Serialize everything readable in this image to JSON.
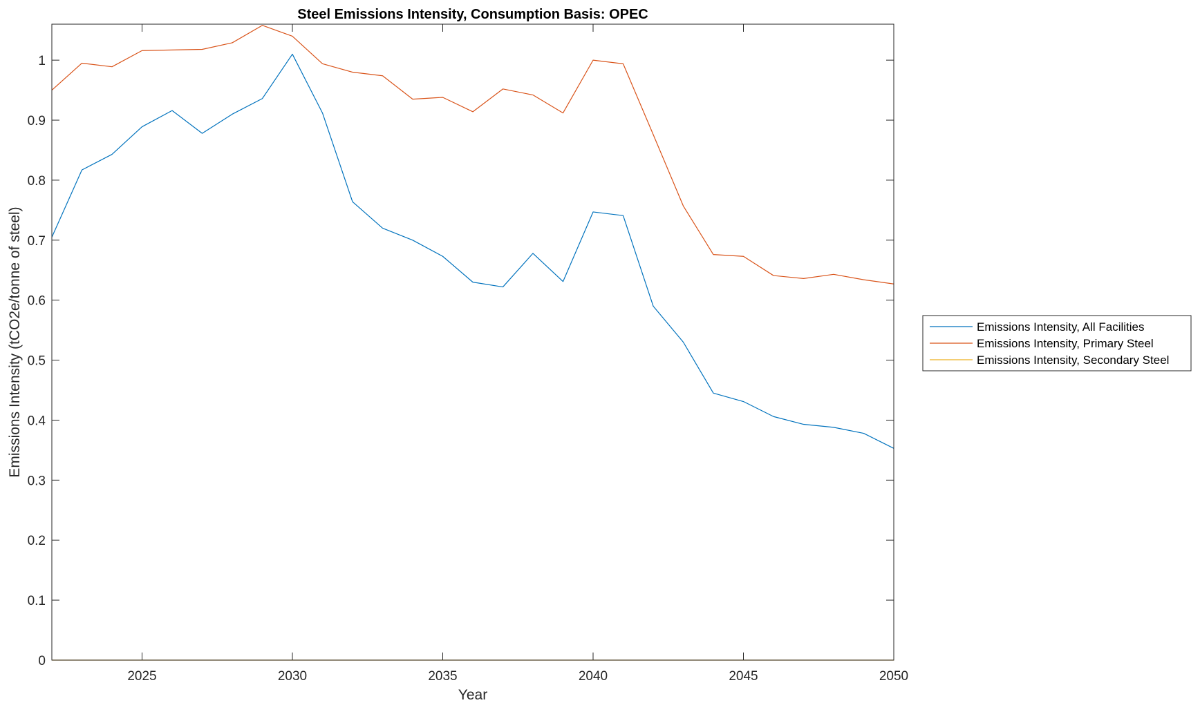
{
  "chart_data": {
    "type": "line",
    "title": "Steel Emissions Intensity, Consumption Basis: OPEC",
    "xlabel": "Year",
    "ylabel": "Emissions Intensity (tCO2e/tonne of steel)",
    "xlim": [
      2022,
      2050
    ],
    "ylim": [
      0,
      1.06
    ],
    "xticks": [
      2025,
      2030,
      2035,
      2040,
      2045,
      2050
    ],
    "yticks": [
      0,
      0.1,
      0.2,
      0.3,
      0.4,
      0.5,
      0.6,
      0.7,
      0.8,
      0.9,
      1
    ],
    "ytick_labels": [
      "0",
      "0.1",
      "0.2",
      "0.3",
      "0.4",
      "0.5",
      "0.6",
      "0.7",
      "0.8",
      "0.9",
      "1"
    ],
    "grid": false,
    "legend_position": "outside-right",
    "x": [
      2022,
      2023,
      2024,
      2025,
      2026,
      2027,
      2028,
      2029,
      2030,
      2031,
      2032,
      2033,
      2034,
      2035,
      2036,
      2037,
      2038,
      2039,
      2040,
      2041,
      2042,
      2043,
      2044,
      2045,
      2046,
      2047,
      2048,
      2049,
      2050
    ],
    "series": [
      {
        "name": "Emissions Intensity, All Facilities",
        "color": "#0072BD",
        "values": [
          0.705,
          0.817,
          0.843,
          0.889,
          0.916,
          0.878,
          0.91,
          0.936,
          1.01,
          0.912,
          0.764,
          0.72,
          0.7,
          0.673,
          0.63,
          0.622,
          0.678,
          0.631,
          0.747,
          0.741,
          0.59,
          0.53,
          0.445,
          0.431,
          0.406,
          0.393,
          0.388,
          0.378,
          0.353
        ]
      },
      {
        "name": "Emissions Intensity, Primary Steel",
        "color": "#D95319",
        "values": [
          0.95,
          0.995,
          0.989,
          1.016,
          1.017,
          1.018,
          1.029,
          1.058,
          1.04,
          0.994,
          0.98,
          0.974,
          0.935,
          0.938,
          0.914,
          0.952,
          0.942,
          0.912,
          1.0,
          0.994,
          0.876,
          0.757,
          0.676,
          0.673,
          0.641,
          0.636,
          0.643,
          0.634,
          0.627
        ]
      },
      {
        "name": "Emissions Intensity, Secondary Steel",
        "color": "#EDB120",
        "values": [
          0,
          0,
          0,
          0,
          0,
          0,
          0,
          0,
          0,
          0,
          0,
          0,
          0,
          0,
          0,
          0,
          0,
          0,
          0,
          0,
          0,
          0,
          0,
          0,
          0,
          0,
          0,
          0,
          0
        ]
      }
    ]
  }
}
